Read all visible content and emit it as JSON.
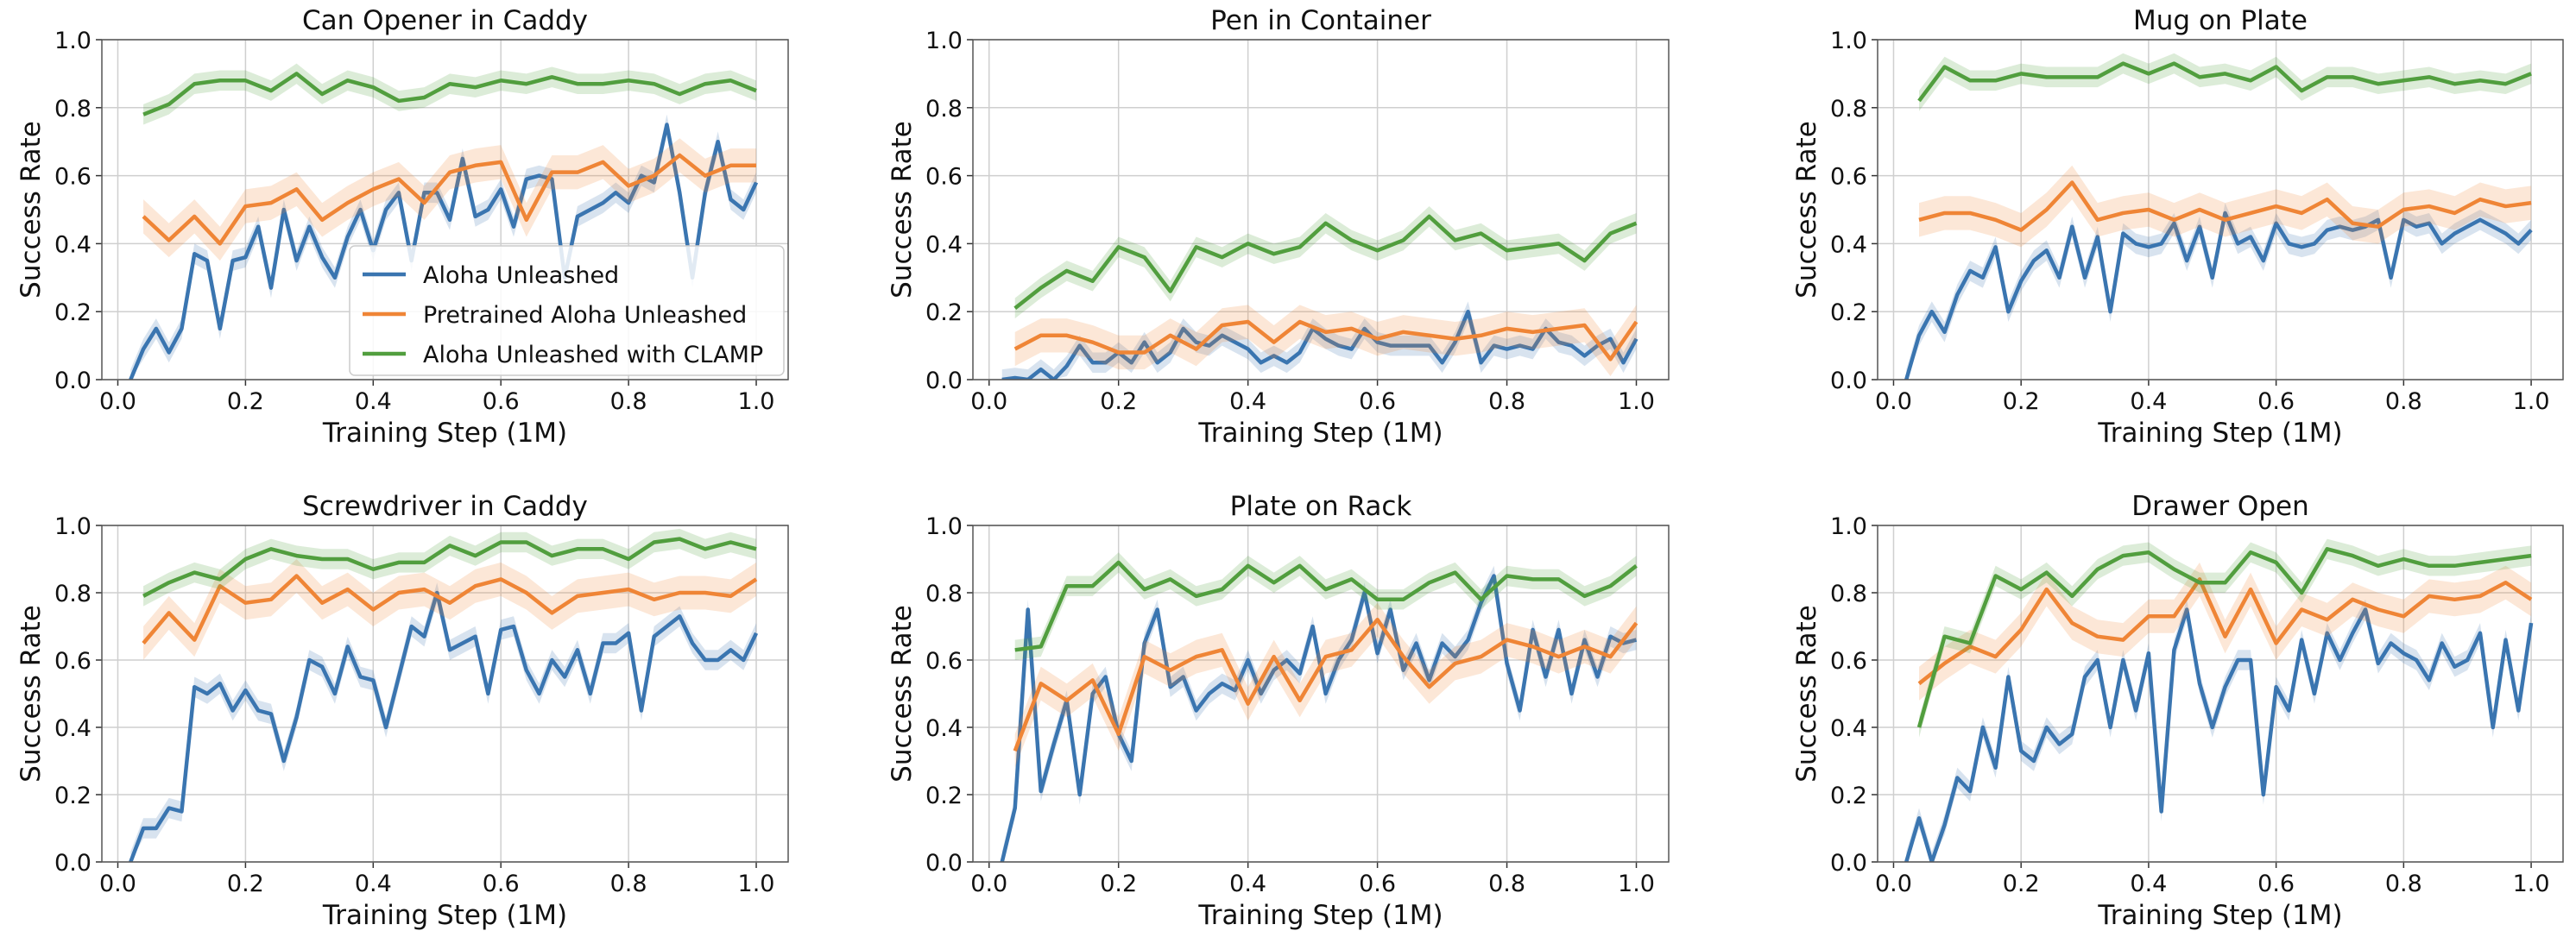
{
  "legend": {
    "placement": "lower-right of first panel",
    "entries": [
      "Aloha Unleashed",
      "Pretrained Aloha Unleashed",
      "Aloha Unleashed with CLAMP"
    ]
  },
  "colors": {
    "Aloha Unleashed": "#3a75b0",
    "Pretrained Aloha Unleashed": "#ef8536",
    "Aloha Unleashed with CLAMP": "#519e3e"
  },
  "chart_data": [
    {
      "type": "line",
      "title": "Can Opener in Caddy",
      "xlabel": "Training Step (1M)",
      "ylabel": "Success Rate",
      "xlim": [
        -0.025,
        1.05
      ],
      "ylim": [
        0,
        1
      ],
      "grid": true,
      "xticks": [
        "0.0",
        "0.2",
        "0.4",
        "0.6",
        "0.8",
        "1.0"
      ],
      "yticks": [
        "0.0",
        "0.2",
        "0.4",
        "0.6",
        "0.8",
        "1.0"
      ],
      "series": [
        {
          "name": "Aloha Unleashed",
          "x_start": 0.02,
          "x_step": 0.02,
          "values": [
            0.0,
            0.09,
            0.15,
            0.08,
            0.15,
            0.37,
            0.35,
            0.15,
            0.35,
            0.36,
            0.45,
            0.27,
            0.5,
            0.35,
            0.45,
            0.36,
            0.3,
            0.42,
            0.5,
            0.38,
            0.5,
            0.55,
            0.35,
            0.55,
            0.55,
            0.47,
            0.65,
            0.48,
            0.5,
            0.56,
            0.45,
            0.59,
            0.6,
            0.59,
            0.3,
            0.48,
            0.5,
            0.52,
            0.55,
            0.52,
            0.6,
            0.58,
            0.75,
            0.55,
            0.3,
            0.55,
            0.7,
            0.53,
            0.5,
            0.58
          ]
        },
        {
          "name": "Pretrained Aloha Unleashed",
          "x_start": 0.04,
          "x_step": 0.04,
          "values": [
            0.48,
            0.41,
            0.48,
            0.4,
            0.51,
            0.52,
            0.56,
            0.47,
            0.52,
            0.56,
            0.59,
            0.52,
            0.61,
            0.63,
            0.64,
            0.47,
            0.61,
            0.61,
            0.64,
            0.57,
            0.6,
            0.66,
            0.6,
            0.63,
            0.63
          ]
        },
        {
          "name": "Aloha Unleashed with CLAMP",
          "x_start": 0.04,
          "x_step": 0.04,
          "values": [
            0.78,
            0.81,
            0.87,
            0.88,
            0.88,
            0.85,
            0.9,
            0.84,
            0.88,
            0.86,
            0.82,
            0.83,
            0.87,
            0.86,
            0.88,
            0.87,
            0.89,
            0.87,
            0.87,
            0.88,
            0.87,
            0.84,
            0.87,
            0.88,
            0.85
          ]
        }
      ]
    },
    {
      "type": "line",
      "title": "Pen in Container",
      "xlabel": "Training Step (1M)",
      "ylabel": "Success Rate",
      "xlim": [
        -0.025,
        1.05
      ],
      "ylim": [
        0,
        1
      ],
      "grid": true,
      "xticks": [
        "0.0",
        "0.2",
        "0.4",
        "0.6",
        "0.8",
        "1.0"
      ],
      "yticks": [
        "0.0",
        "0.2",
        "0.4",
        "0.6",
        "0.8",
        "1.0"
      ],
      "series": [
        {
          "name": "Aloha Unleashed",
          "x_start": 0.02,
          "x_step": 0.02,
          "values": [
            0.0,
            0.005,
            0.0,
            0.03,
            0.0,
            0.04,
            0.1,
            0.05,
            0.05,
            0.08,
            0.05,
            0.11,
            0.05,
            0.08,
            0.15,
            0.11,
            0.1,
            0.13,
            0.11,
            0.09,
            0.05,
            0.07,
            0.05,
            0.08,
            0.15,
            0.12,
            0.1,
            0.09,
            0.15,
            0.11,
            0.1,
            0.1,
            0.1,
            0.1,
            0.05,
            0.11,
            0.2,
            0.05,
            0.1,
            0.09,
            0.1,
            0.09,
            0.15,
            0.11,
            0.1,
            0.07,
            0.1,
            0.12,
            0.05,
            0.12
          ]
        },
        {
          "name": "Pretrained Aloha Unleashed",
          "x_start": 0.04,
          "x_step": 0.04,
          "values": [
            0.09,
            0.13,
            0.13,
            0.11,
            0.08,
            0.08,
            0.13,
            0.09,
            0.16,
            0.17,
            0.11,
            0.17,
            0.14,
            0.15,
            0.12,
            0.14,
            0.13,
            0.12,
            0.13,
            0.15,
            0.14,
            0.15,
            0.16,
            0.06,
            0.17
          ]
        },
        {
          "name": "Aloha Unleashed with CLAMP",
          "x_start": 0.04,
          "x_step": 0.04,
          "values": [
            0.21,
            0.27,
            0.32,
            0.29,
            0.39,
            0.36,
            0.26,
            0.39,
            0.36,
            0.4,
            0.37,
            0.39,
            0.46,
            0.41,
            0.38,
            0.41,
            0.48,
            0.41,
            0.43,
            0.38,
            0.39,
            0.4,
            0.35,
            0.43,
            0.46
          ]
        }
      ]
    },
    {
      "type": "line",
      "title": "Mug on Plate",
      "xlabel": "Training Step (1M)",
      "ylabel": "Success Rate",
      "xlim": [
        -0.025,
        1.05
      ],
      "ylim": [
        0,
        1
      ],
      "grid": true,
      "xticks": [
        "0.0",
        "0.2",
        "0.4",
        "0.6",
        "0.8",
        "1.0"
      ],
      "yticks": [
        "0.0",
        "0.2",
        "0.4",
        "0.6",
        "0.8",
        "1.0"
      ],
      "series": [
        {
          "name": "Aloha Unleashed",
          "x_start": 0.02,
          "x_step": 0.02,
          "values": [
            0.0,
            0.13,
            0.2,
            0.14,
            0.25,
            0.32,
            0.3,
            0.39,
            0.2,
            0.29,
            0.35,
            0.38,
            0.3,
            0.45,
            0.3,
            0.42,
            0.2,
            0.43,
            0.4,
            0.39,
            0.4,
            0.46,
            0.35,
            0.45,
            0.3,
            0.49,
            0.4,
            0.42,
            0.35,
            0.46,
            0.4,
            0.39,
            0.4,
            0.44,
            0.45,
            0.44,
            0.45,
            0.47,
            0.3,
            0.47,
            0.45,
            0.46,
            0.4,
            0.43,
            0.45,
            0.47,
            0.45,
            0.43,
            0.4,
            0.44
          ]
        },
        {
          "name": "Pretrained Aloha Unleashed",
          "x_start": 0.04,
          "x_step": 0.04,
          "values": [
            0.47,
            0.49,
            0.49,
            0.47,
            0.44,
            0.5,
            0.58,
            0.47,
            0.49,
            0.5,
            0.47,
            0.5,
            0.47,
            0.49,
            0.51,
            0.49,
            0.53,
            0.46,
            0.45,
            0.5,
            0.51,
            0.49,
            0.53,
            0.51,
            0.52
          ]
        },
        {
          "name": "Aloha Unleashed with CLAMP",
          "x_start": 0.04,
          "x_step": 0.04,
          "values": [
            0.82,
            0.92,
            0.88,
            0.88,
            0.9,
            0.89,
            0.89,
            0.89,
            0.93,
            0.9,
            0.93,
            0.89,
            0.9,
            0.88,
            0.92,
            0.85,
            0.89,
            0.89,
            0.87,
            0.88,
            0.89,
            0.87,
            0.88,
            0.87,
            0.9
          ]
        }
      ]
    },
    {
      "type": "line",
      "title": "Screwdriver in Caddy",
      "xlabel": "Training Step (1M)",
      "ylabel": "Success Rate",
      "xlim": [
        -0.025,
        1.05
      ],
      "ylim": [
        0,
        1
      ],
      "grid": true,
      "xticks": [
        "0.0",
        "0.2",
        "0.4",
        "0.6",
        "0.8",
        "1.0"
      ],
      "yticks": [
        "0.0",
        "0.2",
        "0.4",
        "0.6",
        "0.8",
        "1.0"
      ],
      "series": [
        {
          "name": "Aloha Unleashed",
          "x_start": 0.02,
          "x_step": 0.02,
          "values": [
            0.0,
            0.1,
            0.1,
            0.16,
            0.15,
            0.52,
            0.5,
            0.53,
            0.45,
            0.51,
            0.45,
            0.44,
            0.3,
            0.43,
            0.6,
            0.58,
            0.5,
            0.64,
            0.55,
            0.54,
            0.4,
            0.55,
            0.7,
            0.67,
            0.8,
            0.63,
            0.65,
            0.67,
            0.5,
            0.69,
            0.7,
            0.57,
            0.5,
            0.6,
            0.55,
            0.63,
            0.5,
            0.65,
            0.65,
            0.68,
            0.45,
            0.67,
            0.7,
            0.73,
            0.65,
            0.6,
            0.6,
            0.63,
            0.6,
            0.68
          ]
        },
        {
          "name": "Pretrained Aloha Unleashed",
          "x_start": 0.04,
          "x_step": 0.04,
          "values": [
            0.65,
            0.74,
            0.66,
            0.82,
            0.77,
            0.78,
            0.85,
            0.77,
            0.81,
            0.75,
            0.8,
            0.81,
            0.77,
            0.82,
            0.84,
            0.8,
            0.74,
            0.79,
            0.8,
            0.81,
            0.78,
            0.8,
            0.8,
            0.79,
            0.84
          ]
        },
        {
          "name": "Aloha Unleashed with CLAMP",
          "x_start": 0.04,
          "x_step": 0.04,
          "values": [
            0.79,
            0.83,
            0.86,
            0.84,
            0.9,
            0.93,
            0.91,
            0.9,
            0.9,
            0.87,
            0.89,
            0.89,
            0.94,
            0.91,
            0.95,
            0.95,
            0.91,
            0.93,
            0.93,
            0.9,
            0.95,
            0.96,
            0.93,
            0.95,
            0.93
          ]
        }
      ]
    },
    {
      "type": "line",
      "title": "Plate on Rack",
      "xlabel": "Training Step (1M)",
      "ylabel": "Success Rate",
      "xlim": [
        -0.025,
        1.05
      ],
      "ylim": [
        0,
        1
      ],
      "grid": true,
      "xticks": [
        "0.0",
        "0.2",
        "0.4",
        "0.6",
        "0.8",
        "1.0"
      ],
      "yticks": [
        "0.0",
        "0.2",
        "0.4",
        "0.6",
        "0.8",
        "1.0"
      ],
      "series": [
        {
          "name": "Aloha Unleashed",
          "x_start": 0.02,
          "x_step": 0.02,
          "values": [
            0.0,
            0.16,
            0.75,
            0.21,
            0.35,
            0.48,
            0.2,
            0.5,
            0.55,
            0.38,
            0.3,
            0.65,
            0.75,
            0.52,
            0.55,
            0.45,
            0.5,
            0.53,
            0.51,
            0.6,
            0.5,
            0.57,
            0.6,
            0.56,
            0.7,
            0.5,
            0.6,
            0.66,
            0.8,
            0.62,
            0.75,
            0.57,
            0.65,
            0.54,
            0.65,
            0.61,
            0.66,
            0.77,
            0.85,
            0.59,
            0.45,
            0.69,
            0.55,
            0.69,
            0.5,
            0.66,
            0.55,
            0.67,
            0.65,
            0.66
          ]
        },
        {
          "name": "Pretrained Aloha Unleashed",
          "x_start": 0.04,
          "x_step": 0.04,
          "values": [
            0.33,
            0.53,
            0.48,
            0.54,
            0.38,
            0.61,
            0.57,
            0.61,
            0.63,
            0.47,
            0.61,
            0.48,
            0.61,
            0.63,
            0.72,
            0.61,
            0.52,
            0.59,
            0.61,
            0.66,
            0.64,
            0.61,
            0.64,
            0.61,
            0.71
          ]
        },
        {
          "name": "Aloha Unleashed with CLAMP",
          "x_start": 0.04,
          "x_step": 0.04,
          "values": [
            0.63,
            0.64,
            0.82,
            0.82,
            0.89,
            0.81,
            0.84,
            0.79,
            0.81,
            0.88,
            0.83,
            0.88,
            0.81,
            0.84,
            0.78,
            0.78,
            0.83,
            0.86,
            0.78,
            0.85,
            0.84,
            0.84,
            0.79,
            0.82,
            0.88
          ]
        }
      ]
    },
    {
      "type": "line",
      "title": "Drawer Open",
      "xlabel": "Training Step (1M)",
      "ylabel": "Success Rate",
      "xlim": [
        -0.025,
        1.05
      ],
      "ylim": [
        0,
        1
      ],
      "grid": true,
      "xticks": [
        "0.0",
        "0.2",
        "0.4",
        "0.6",
        "0.8",
        "1.0"
      ],
      "yticks": [
        "0.0",
        "0.2",
        "0.4",
        "0.6",
        "0.8",
        "1.0"
      ],
      "series": [
        {
          "name": "Aloha Unleashed",
          "x_start": 0.02,
          "x_step": 0.02,
          "values": [
            0.0,
            0.13,
            0.0,
            0.11,
            0.25,
            0.21,
            0.4,
            0.28,
            0.55,
            0.33,
            0.3,
            0.4,
            0.35,
            0.38,
            0.55,
            0.6,
            0.4,
            0.6,
            0.45,
            0.62,
            0.15,
            0.63,
            0.75,
            0.53,
            0.4,
            0.52,
            0.6,
            0.6,
            0.2,
            0.52,
            0.45,
            0.66,
            0.5,
            0.68,
            0.6,
            0.68,
            0.75,
            0.59,
            0.65,
            0.62,
            0.6,
            0.54,
            0.65,
            0.58,
            0.6,
            0.68,
            0.4,
            0.66,
            0.45,
            0.71
          ]
        },
        {
          "name": "Pretrained Aloha Unleashed",
          "x_start": 0.04,
          "x_step": 0.04,
          "values": [
            0.53,
            0.59,
            0.64,
            0.61,
            0.69,
            0.81,
            0.71,
            0.67,
            0.66,
            0.73,
            0.73,
            0.84,
            0.67,
            0.81,
            0.65,
            0.75,
            0.72,
            0.78,
            0.75,
            0.73,
            0.79,
            0.78,
            0.79,
            0.83,
            0.78
          ]
        },
        {
          "name": "Aloha Unleashed with CLAMP",
          "x_start": 0.04,
          "x_step": 0.04,
          "values": [
            0.4,
            0.67,
            0.65,
            0.85,
            0.81,
            0.86,
            0.79,
            0.87,
            0.91,
            0.92,
            0.87,
            0.83,
            0.83,
            0.92,
            0.89,
            0.8,
            0.93,
            0.91,
            0.88,
            0.9,
            0.88,
            0.88,
            0.89,
            0.9,
            0.91
          ]
        }
      ]
    }
  ]
}
